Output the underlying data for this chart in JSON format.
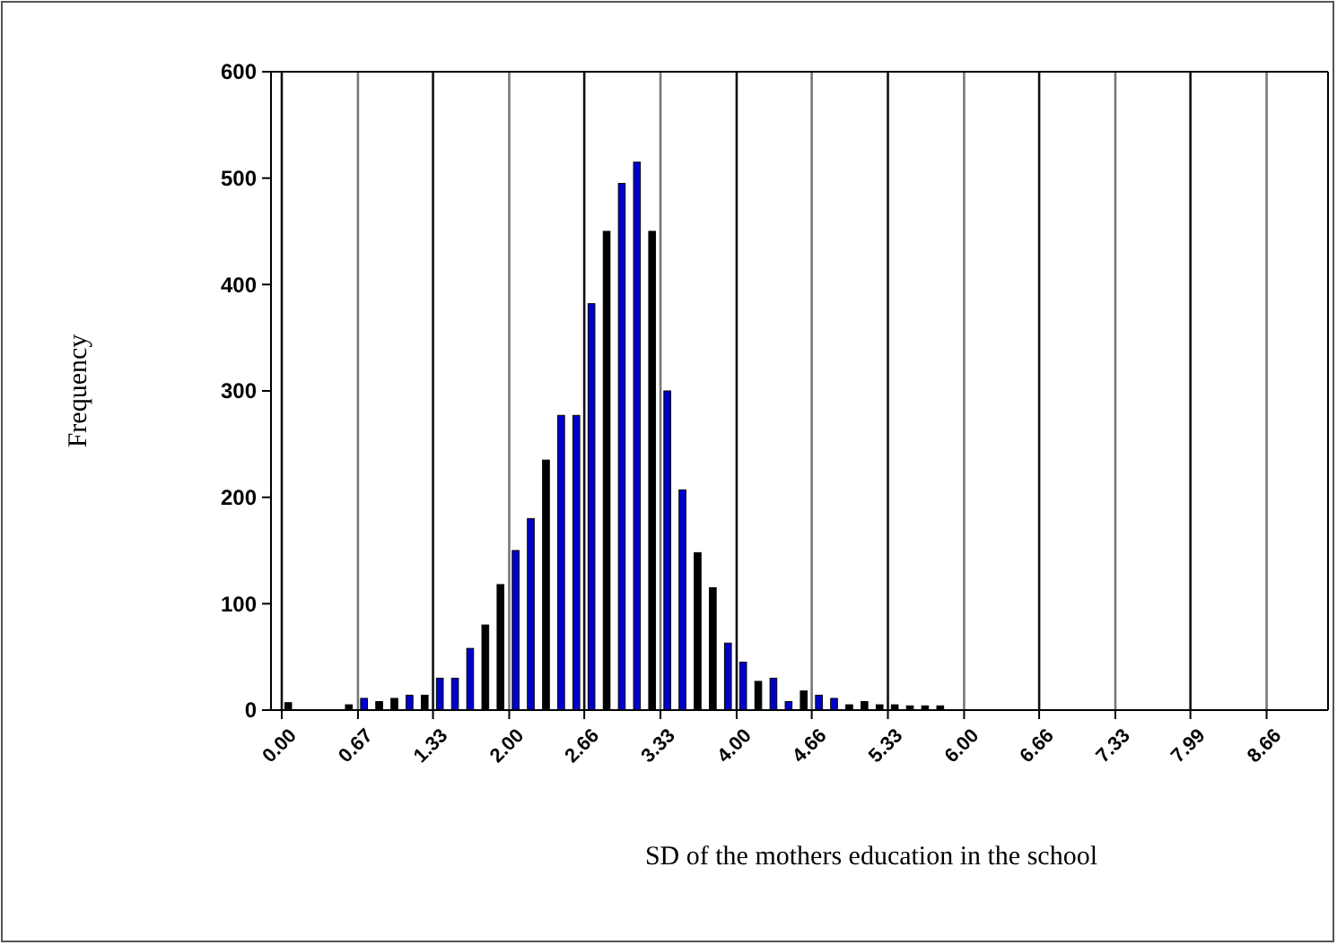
{
  "chart_data": {
    "type": "histogram",
    "xlabel": "SD of the mothers education in the school",
    "ylabel": "Frequency",
    "bins": [
      0,
      0.1333,
      0.2667,
      0.4,
      0.5333,
      0.6667,
      0.8,
      0.9333,
      1.0667,
      1.2,
      1.3333,
      1.4667,
      1.6,
      1.7333,
      1.8667,
      2,
      2.1333,
      2.2667,
      2.4,
      2.5333,
      2.6667,
      2.8,
      2.9333,
      3.0667,
      3.2,
      3.3333,
      3.4667,
      3.6,
      3.7333,
      3.8667,
      4,
      4.1333,
      4.2667,
      4.4,
      4.5333,
      4.6667,
      4.8,
      4.9333,
      5.0667,
      5.2,
      5.3333,
      5.4667,
      5.6,
      5.7333,
      5.8667
    ],
    "values": [
      7,
      0,
      0,
      0,
      5,
      11,
      8,
      11,
      14,
      14,
      30,
      30,
      58,
      80,
      118,
      150,
      180,
      235,
      277,
      277,
      382,
      450,
      495,
      515,
      450,
      300,
      207,
      148,
      115,
      63,
      45,
      27,
      30,
      8,
      18,
      14,
      11,
      5,
      8,
      5,
      5,
      4,
      4,
      4
    ],
    "colors": [
      "#000000",
      "#000000",
      "#000000",
      "#000000",
      "#000000",
      "#0000cc",
      "#000000",
      "#000000",
      "#0000cc",
      "#000000",
      "#0000cc",
      "#0000cc",
      "#0000cc",
      "#000000",
      "#000000",
      "#0000cc",
      "#0000cc",
      "#000000",
      "#0000cc",
      "#0000cc",
      "#0000cc",
      "#000000",
      "#0000cc",
      "#0000cc",
      "#000000",
      "#0000cc",
      "#0000cc",
      "#000000",
      "#000000",
      "#0000cc",
      "#0000cc",
      "#000000",
      "#0000cc",
      "#0000cc",
      "#000000",
      "#0000cc",
      "#0000cc",
      "#000000",
      "#000000",
      "#000000",
      "#000000",
      "#000000",
      "#000000",
      "#000000"
    ],
    "xlim": [
      0,
      9.2
    ],
    "xticks": [
      {
        "value": 0,
        "label": "0.00"
      },
      {
        "value": 0.67,
        "label": "0.67"
      },
      {
        "value": 1.33,
        "label": "1.33"
      },
      {
        "value": 2,
        "label": "2.00"
      },
      {
        "value": 2.66,
        "label": "2.66"
      },
      {
        "value": 3.33,
        "label": "3.33"
      },
      {
        "value": 4,
        "label": "4.00"
      },
      {
        "value": 4.66,
        "label": "4.66"
      },
      {
        "value": 5.33,
        "label": "5.33"
      },
      {
        "value": 6,
        "label": "6.00"
      },
      {
        "value": 6.66,
        "label": "6.66"
      },
      {
        "value": 7.33,
        "label": "7.33"
      },
      {
        "value": 7.99,
        "label": "7.99"
      },
      {
        "value": 8.66,
        "label": "8.66"
      }
    ],
    "ylim": [
      0,
      600
    ],
    "yticks": [
      0,
      100,
      200,
      300,
      400,
      500,
      600
    ],
    "grid": "x"
  }
}
